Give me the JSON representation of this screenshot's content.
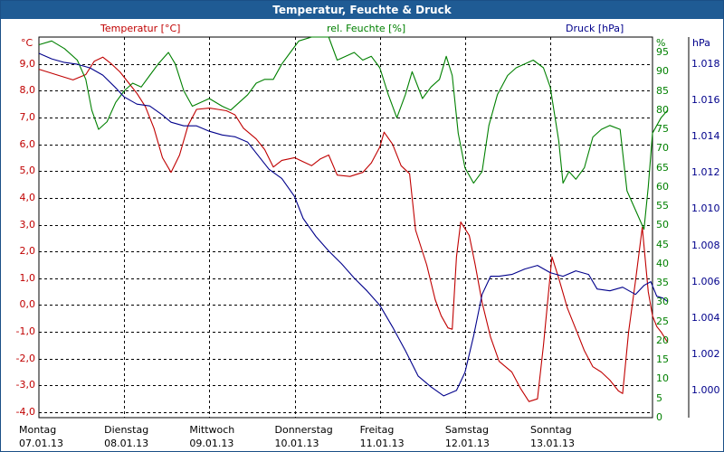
{
  "window": {
    "title": "Temperatur, Feuchte & Druck"
  },
  "colors": {
    "temperature": "#c00000",
    "humidity": "#008000",
    "pressure": "#00008b",
    "titlebar": "#1f5b94",
    "grid": "#000000"
  },
  "chart_data": {
    "type": "line",
    "title": "Temperatur, Feuchte & Druck",
    "grid": true,
    "axes": {
      "left": {
        "label": "Temperatur [°C]",
        "unit": "°C",
        "range": [
          -4.2,
          10.0
        ],
        "ticks": [
          "9,0",
          "8,0",
          "7,0",
          "6,0",
          "5,0",
          "4,0",
          "3,0",
          "2,0",
          "1,0",
          "0,0",
          "-1,0",
          "-2,0",
          "-3,0",
          "-4,0"
        ],
        "tick_values": [
          9,
          8,
          7,
          6,
          5,
          4,
          3,
          2,
          1,
          0,
          -1,
          -2,
          -3,
          -4
        ]
      },
      "middle": {
        "label": "rel. Feuchte [%]",
        "unit": "%",
        "range": [
          0,
          99
        ],
        "ticks": [
          "95",
          "90",
          "85",
          "80",
          "75",
          "70",
          "65",
          "60",
          "55",
          "50",
          "45",
          "40",
          "35",
          "30",
          "25",
          "20",
          "15",
          "10",
          "5",
          "0"
        ],
        "tick_values": [
          95,
          90,
          85,
          80,
          75,
          70,
          65,
          60,
          55,
          50,
          45,
          40,
          35,
          30,
          25,
          20,
          15,
          10,
          5,
          0
        ]
      },
      "right": {
        "label": "Druck [hPa]",
        "unit": "hPa",
        "range": [
          0.9985,
          1.0195
        ],
        "ticks": [
          "1.018",
          "1.016",
          "1.014",
          "1.012",
          "1.010",
          "1.008",
          "1.006",
          "1.004",
          "1.002",
          "1.000"
        ],
        "tick_values": [
          1.018,
          1.016,
          1.014,
          1.012,
          1.01,
          1.008,
          1.006,
          1.004,
          1.002,
          1.0
        ]
      }
    },
    "x_days": [
      {
        "day": "Montag",
        "date": "07.01.13"
      },
      {
        "day": "Dienstag",
        "date": "08.01.13"
      },
      {
        "day": "Mittwoch",
        "date": "09.01.13"
      },
      {
        "day": "Donnerstag",
        "date": "10.01.13"
      },
      {
        "day": "Freitag",
        "date": "11.01.13"
      },
      {
        "day": "Samstag",
        "date": "12.01.13"
      },
      {
        "day": "Sonntag",
        "date": "13.01.13"
      }
    ],
    "x_range_days": [
      0,
      7.2
    ],
    "series": [
      {
        "name": "Temperatur [°C]",
        "axis": "left",
        "points": [
          [
            0.0,
            8.8
          ],
          [
            0.2,
            8.6
          ],
          [
            0.4,
            8.4
          ],
          [
            0.55,
            8.6
          ],
          [
            0.65,
            9.1
          ],
          [
            0.75,
            9.25
          ],
          [
            0.85,
            9.0
          ],
          [
            0.95,
            8.7
          ],
          [
            1.05,
            8.3
          ],
          [
            1.15,
            7.9
          ],
          [
            1.25,
            7.4
          ],
          [
            1.35,
            6.6
          ],
          [
            1.45,
            5.5
          ],
          [
            1.55,
            4.95
          ],
          [
            1.65,
            5.6
          ],
          [
            1.75,
            6.7
          ],
          [
            1.85,
            7.3
          ],
          [
            2.0,
            7.35
          ],
          [
            2.1,
            7.3
          ],
          [
            2.2,
            7.25
          ],
          [
            2.3,
            7.1
          ],
          [
            2.4,
            6.6
          ],
          [
            2.55,
            6.2
          ],
          [
            2.65,
            5.8
          ],
          [
            2.75,
            5.15
          ],
          [
            2.85,
            5.4
          ],
          [
            3.0,
            5.5
          ],
          [
            3.1,
            5.35
          ],
          [
            3.2,
            5.2
          ],
          [
            3.3,
            5.45
          ],
          [
            3.4,
            5.6
          ],
          [
            3.5,
            4.85
          ],
          [
            3.65,
            4.8
          ],
          [
            3.8,
            4.95
          ],
          [
            3.9,
            5.3
          ],
          [
            4.0,
            5.9
          ],
          [
            4.05,
            6.45
          ],
          [
            4.15,
            6.0
          ],
          [
            4.25,
            5.2
          ],
          [
            4.35,
            4.9
          ],
          [
            4.42,
            2.8
          ],
          [
            4.55,
            1.5
          ],
          [
            4.65,
            0.2
          ],
          [
            4.72,
            -0.4
          ],
          [
            4.8,
            -0.85
          ],
          [
            4.85,
            -0.9
          ],
          [
            4.9,
            1.8
          ],
          [
            4.95,
            3.1
          ],
          [
            5.05,
            2.6
          ],
          [
            5.12,
            1.5
          ],
          [
            5.2,
            0.1
          ],
          [
            5.3,
            -1.2
          ],
          [
            5.4,
            -2.1
          ],
          [
            5.55,
            -2.5
          ],
          [
            5.65,
            -3.1
          ],
          [
            5.75,
            -3.6
          ],
          [
            5.85,
            -3.5
          ],
          [
            5.92,
            -1.5
          ],
          [
            6.02,
            1.8
          ],
          [
            6.1,
            1.0
          ],
          [
            6.2,
            -0.1
          ],
          [
            6.3,
            -0.9
          ],
          [
            6.4,
            -1.7
          ],
          [
            6.5,
            -2.3
          ],
          [
            6.6,
            -2.5
          ],
          [
            6.7,
            -2.8
          ],
          [
            6.8,
            -3.2
          ],
          [
            6.85,
            -3.3
          ],
          [
            6.92,
            -1.0
          ],
          [
            7.0,
            0.9
          ],
          [
            7.08,
            2.9
          ],
          [
            7.15,
            0.5
          ],
          [
            7.2,
            -0.4
          ],
          [
            7.25,
            -0.8
          ],
          [
            7.3,
            -1.0
          ],
          [
            7.38,
            -1.4
          ]
        ]
      },
      {
        "name": "rel. Feuchte [%]",
        "axis": "middle",
        "points": [
          [
            0.0,
            97
          ],
          [
            0.15,
            98
          ],
          [
            0.3,
            96
          ],
          [
            0.45,
            93
          ],
          [
            0.55,
            88
          ],
          [
            0.62,
            80
          ],
          [
            0.7,
            75
          ],
          [
            0.8,
            77
          ],
          [
            0.9,
            82
          ],
          [
            1.0,
            85
          ],
          [
            1.1,
            87
          ],
          [
            1.2,
            86
          ],
          [
            1.3,
            89
          ],
          [
            1.4,
            92
          ],
          [
            1.52,
            95
          ],
          [
            1.6,
            92
          ],
          [
            1.7,
            85
          ],
          [
            1.8,
            81
          ],
          [
            1.9,
            82
          ],
          [
            2.0,
            83
          ],
          [
            2.15,
            81
          ],
          [
            2.25,
            80
          ],
          [
            2.35,
            82
          ],
          [
            2.45,
            84
          ],
          [
            2.55,
            87
          ],
          [
            2.65,
            88
          ],
          [
            2.75,
            88
          ],
          [
            2.85,
            92
          ],
          [
            2.95,
            95
          ],
          [
            3.05,
            98
          ],
          [
            3.2,
            99
          ],
          [
            3.4,
            99
          ],
          [
            3.5,
            93
          ],
          [
            3.6,
            94
          ],
          [
            3.7,
            95
          ],
          [
            3.8,
            93
          ],
          [
            3.9,
            94
          ],
          [
            4.0,
            91
          ],
          [
            4.1,
            84
          ],
          [
            4.2,
            78
          ],
          [
            4.3,
            84
          ],
          [
            4.38,
            90
          ],
          [
            4.5,
            83
          ],
          [
            4.6,
            86
          ],
          [
            4.7,
            88
          ],
          [
            4.78,
            94
          ],
          [
            4.85,
            89
          ],
          [
            4.92,
            74
          ],
          [
            5.0,
            65
          ],
          [
            5.1,
            61
          ],
          [
            5.2,
            64
          ],
          [
            5.28,
            76
          ],
          [
            5.38,
            84
          ],
          [
            5.5,
            89
          ],
          [
            5.6,
            91
          ],
          [
            5.7,
            92
          ],
          [
            5.8,
            93
          ],
          [
            5.92,
            91
          ],
          [
            6.0,
            86
          ],
          [
            6.1,
            72
          ],
          [
            6.15,
            61
          ],
          [
            6.22,
            64
          ],
          [
            6.3,
            62
          ],
          [
            6.4,
            65
          ],
          [
            6.5,
            73
          ],
          [
            6.6,
            75
          ],
          [
            6.7,
            76
          ],
          [
            6.82,
            75
          ],
          [
            6.9,
            59
          ],
          [
            7.0,
            54
          ],
          [
            7.1,
            49
          ],
          [
            7.15,
            60
          ],
          [
            7.2,
            74
          ],
          [
            7.3,
            78
          ],
          [
            7.38,
            80
          ]
        ]
      },
      {
        "name": "Druck [hPa]",
        "axis": "right",
        "points": [
          [
            0.0,
            1.0186
          ],
          [
            0.15,
            1.0183
          ],
          [
            0.3,
            1.0181
          ],
          [
            0.45,
            1.018
          ],
          [
            0.6,
            1.0178
          ],
          [
            0.75,
            1.0174
          ],
          [
            0.9,
            1.0167
          ],
          [
            1.0,
            1.0162
          ],
          [
            1.15,
            1.0158
          ],
          [
            1.3,
            1.0157
          ],
          [
            1.45,
            1.0152
          ],
          [
            1.55,
            1.0148
          ],
          [
            1.7,
            1.0146
          ],
          [
            1.85,
            1.0146
          ],
          [
            2.0,
            1.0143
          ],
          [
            2.15,
            1.0141
          ],
          [
            2.3,
            1.014
          ],
          [
            2.45,
            1.0137
          ],
          [
            2.55,
            1.0131
          ],
          [
            2.7,
            1.0122
          ],
          [
            2.85,
            1.0117
          ],
          [
            3.0,
            1.0107
          ],
          [
            3.1,
            1.0095
          ],
          [
            3.25,
            1.0085
          ],
          [
            3.4,
            1.0077
          ],
          [
            3.55,
            1.007
          ],
          [
            3.7,
            1.0062
          ],
          [
            3.85,
            1.0055
          ],
          [
            4.0,
            1.0047
          ],
          [
            4.15,
            1.0035
          ],
          [
            4.3,
            1.0022
          ],
          [
            4.45,
            1.0008
          ],
          [
            4.6,
            1.0002
          ],
          [
            4.75,
            0.9997
          ],
          [
            4.9,
            1.0
          ],
          [
            5.0,
            1.001
          ],
          [
            5.1,
            1.003
          ],
          [
            5.2,
            1.0053
          ],
          [
            5.3,
            1.0063
          ],
          [
            5.4,
            1.0063
          ],
          [
            5.55,
            1.0064
          ],
          [
            5.7,
            1.0067
          ],
          [
            5.85,
            1.0069
          ],
          [
            6.0,
            1.0065
          ],
          [
            6.15,
            1.0063
          ],
          [
            6.3,
            1.0066
          ],
          [
            6.45,
            1.0064
          ],
          [
            6.55,
            1.0056
          ],
          [
            6.7,
            1.0055
          ],
          [
            6.85,
            1.0057
          ],
          [
            7.0,
            1.0053
          ],
          [
            7.1,
            1.0058
          ],
          [
            7.18,
            1.006
          ],
          [
            7.25,
            1.0052
          ],
          [
            7.32,
            1.0051
          ],
          [
            7.38,
            1.0049
          ]
        ]
      }
    ]
  }
}
